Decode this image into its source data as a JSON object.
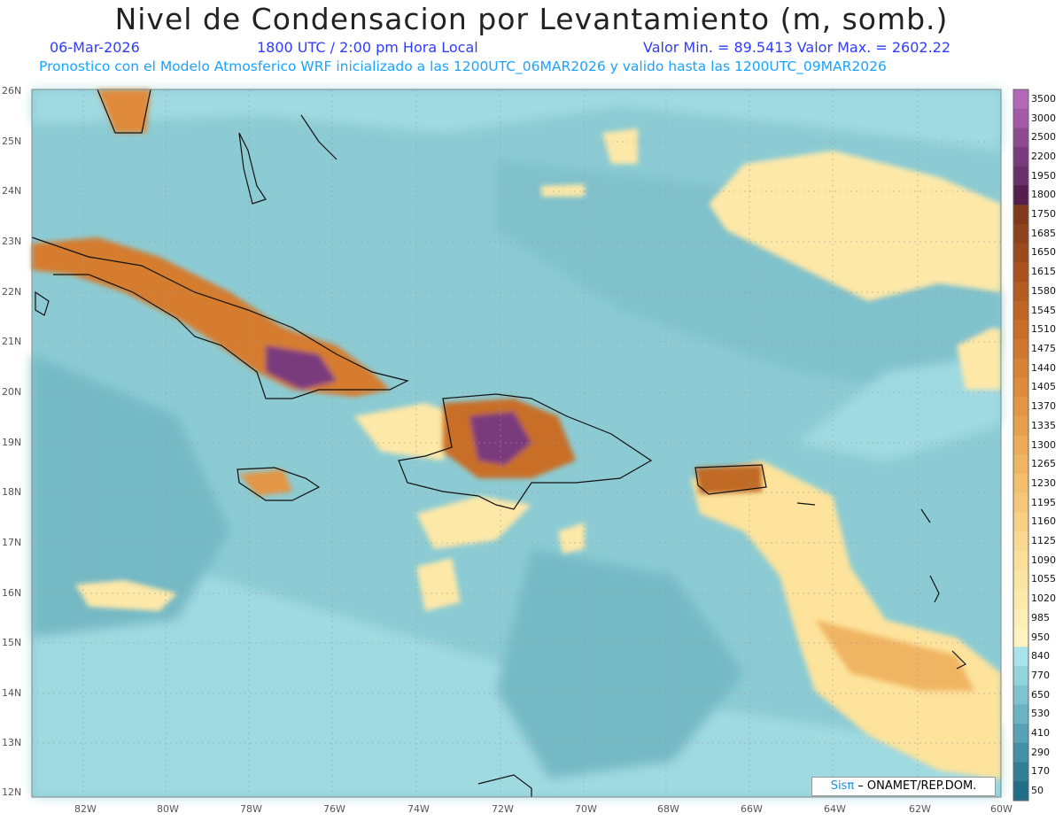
{
  "title": "Nivel de Condensacion por Levantamiento (m, somb.)",
  "date": "06-Mar-2026",
  "time": "1800 UTC / 2:00 pm Hora Local",
  "minmax": "Valor Min. = 89.5413  Valor Max. = 2602.22",
  "forecast": "Pronostico con el Modelo Atmosferico WRF inicializado a las 1200UTC_06MAR2026 y valido hasta las  1200UTC_09MAR2026",
  "lat_labels": [
    "26N",
    "25N",
    "24N",
    "23N",
    "22N",
    "21N",
    "20N",
    "19N",
    "18N",
    "17N",
    "16N",
    "15N",
    "14N",
    "13N",
    "12N"
  ],
  "lon_labels": [
    "82W",
    "80W",
    "78W",
    "76W",
    "74W",
    "72W",
    "70W",
    "68W",
    "66W",
    "64W",
    "62W",
    "60W"
  ],
  "colorbar": {
    "levels": [
      "3500",
      "3000",
      "2500",
      "2200",
      "1950",
      "1800",
      "1750",
      "1685",
      "1650",
      "1615",
      "1580",
      "1545",
      "1510",
      "1475",
      "1440",
      "1405",
      "1370",
      "1335",
      "1300",
      "1265",
      "1230",
      "1195",
      "1160",
      "1125",
      "1090",
      "1055",
      "1020",
      "985",
      "950",
      "840",
      "770",
      "650",
      "530",
      "410",
      "290",
      "170",
      "50"
    ],
    "colors": [
      "#b469b6",
      "#a35aa6",
      "#8e4a90",
      "#7a3b7d",
      "#66306a",
      "#521f4f",
      "#7e3a1a",
      "#8c421a",
      "#9b4a1c",
      "#a9521e",
      "#b55c20",
      "#bf6524",
      "#c86e28",
      "#d0782e",
      "#d78234",
      "#de8c3c",
      "#e39644",
      "#e8a04e",
      "#edab58",
      "#f0b563",
      "#f3bf6e",
      "#f5c879",
      "#f7d084",
      "#f9d88f",
      "#fadf99",
      "#fbe5a3",
      "#fceaad",
      "#fdeeb5",
      "#fef2bf",
      "#a9e3ea",
      "#93d3dc",
      "#7fc3cf",
      "#6bb3c2",
      "#57a2b4",
      "#4391a6",
      "#307f97",
      "#1f6d86"
    ]
  },
  "credit": {
    "logo": "Sisπ",
    "text": " – ONAMET/REP.DOM."
  }
}
